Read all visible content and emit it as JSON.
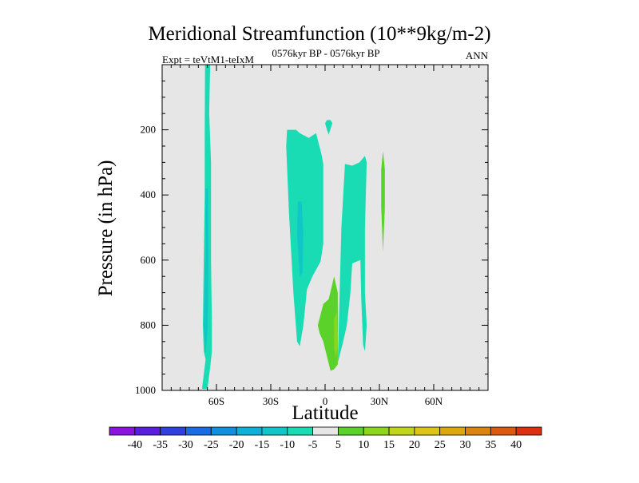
{
  "chart_data": {
    "type": "contour",
    "title": "Meridional Streamfunction (10**9kg/m-2)",
    "left_subtitle": "Expt = teVtM1-teIxM",
    "center_subtitle": "0576kyr BP - 0576kyr BP",
    "right_subtitle": "ANN",
    "xlabel": "Latitude",
    "ylabel": "Pressure (in hPa)",
    "xlim": [
      -90,
      90
    ],
    "ylim": [
      0,
      1000
    ],
    "x_ticks": [
      -60,
      -30,
      0,
      30,
      60
    ],
    "x_tick_labels": [
      "60S",
      "30S",
      "0",
      "30N",
      "60N"
    ],
    "y_ticks": [
      200,
      400,
      600,
      800,
      1000
    ],
    "y_tick_labels": [
      "200",
      "400",
      "600",
      "800",
      "1000"
    ],
    "background_color": "#e6e6e6",
    "colorbar": {
      "labels": [
        "-40",
        "-35",
        "-30",
        "-25",
        "-20",
        "-15",
        "-10",
        "-5",
        "5",
        "10",
        "15",
        "20",
        "25",
        "30",
        "35",
        "40"
      ],
      "colors": [
        "#8a13e0",
        "#5a1ee0",
        "#2f3fe0",
        "#1a6be6",
        "#1190e0",
        "#0cb0d8",
        "#10c6c8",
        "#19dcb4",
        "#e6e6e6",
        "#5ad22a",
        "#8cd61c",
        "#c0d61a",
        "#dcc514",
        "#dca80c",
        "#dc8410",
        "#dc5a10",
        "#dc3010"
      ]
    },
    "regions": [
      {
        "name": "sh-high-lat-cell",
        "fill": "#19dcb4",
        "points": [
          [
            -68,
            995
          ],
          [
            -66,
            905
          ],
          [
            -67,
            880
          ],
          [
            -67.5,
            800
          ],
          [
            -67,
            600
          ],
          [
            -66.5,
            400
          ],
          [
            -66.5,
            200
          ],
          [
            -66.3,
            0
          ],
          [
            -63.5,
            0
          ],
          [
            -64,
            150
          ],
          [
            -63,
            300
          ],
          [
            -63,
            600
          ],
          [
            -62.5,
            800
          ],
          [
            -62.5,
            880
          ],
          [
            -63.5,
            930
          ],
          [
            -65,
            995
          ]
        ]
      },
      {
        "name": "sh-high-lat-core",
        "fill": "#10c6c8",
        "points": [
          [
            -66,
            890
          ],
          [
            -67,
            800
          ],
          [
            -66,
            600
          ],
          [
            -66,
            380
          ],
          [
            -64.8,
            380
          ],
          [
            -64.5,
            600
          ],
          [
            -64.8,
            800
          ]
        ]
      },
      {
        "name": "tropical-left-cell",
        "fill": "#19dcb4",
        "points": [
          [
            -15.5,
            850
          ],
          [
            -17.5,
            700
          ],
          [
            -20,
            450
          ],
          [
            -21.5,
            250
          ],
          [
            -21,
            200
          ],
          [
            -16,
            200
          ],
          [
            -14,
            210
          ],
          [
            -9,
            225
          ],
          [
            -5,
            210
          ],
          [
            -2,
            275
          ],
          [
            -1,
            305
          ],
          [
            -1,
            550
          ],
          [
            -2.5,
            605
          ],
          [
            -7,
            650
          ],
          [
            -10,
            690
          ],
          [
            -12,
            800
          ],
          [
            -14,
            865
          ]
        ]
      },
      {
        "name": "tropical-left-core",
        "fill": "#10c6c8",
        "points": [
          [
            -14,
            650
          ],
          [
            -15.5,
            520
          ],
          [
            -15,
            420
          ],
          [
            -13,
            420
          ],
          [
            -12,
            520
          ],
          [
            -12.5,
            640
          ]
        ]
      },
      {
        "name": "upper-patch",
        "fill": "#19dcb4",
        "points": [
          [
            0,
            180
          ],
          [
            1,
            200
          ],
          [
            2,
            215
          ],
          [
            4,
            180
          ],
          [
            3,
            170
          ],
          [
            1,
            170
          ]
        ]
      },
      {
        "name": "tropical-mid-cell",
        "fill": "#19dcb4",
        "points": [
          [
            7,
            915
          ],
          [
            9,
            500
          ],
          [
            11,
            305
          ],
          [
            15,
            310
          ],
          [
            19,
            300
          ],
          [
            22,
            280
          ],
          [
            23,
            300
          ],
          [
            22,
            500
          ],
          [
            22,
            700
          ],
          [
            23,
            800
          ],
          [
            22,
            880
          ],
          [
            21,
            860
          ],
          [
            20,
            720
          ],
          [
            19.5,
            600
          ],
          [
            15,
            610
          ],
          [
            14,
            700
          ],
          [
            12,
            800
          ],
          [
            10,
            850
          ]
        ]
      },
      {
        "name": "nh-positive-small",
        "fill": "#5ad22a",
        "points": [
          [
            32,
            265
          ],
          [
            31,
            320
          ],
          [
            31,
            440
          ],
          [
            32,
            575
          ],
          [
            33,
            440
          ],
          [
            33,
            320
          ]
        ]
      },
      {
        "name": "equatorial-positive",
        "fill": "#5ad22a",
        "points": [
          [
            -4,
            800
          ],
          [
            -1,
            735
          ],
          [
            2,
            720
          ],
          [
            5,
            650
          ],
          [
            7,
            700
          ],
          [
            7,
            920
          ],
          [
            5,
            935
          ],
          [
            3,
            940
          ],
          [
            -1,
            850
          ],
          [
            -3,
            825
          ]
        ]
      },
      {
        "name": "equatorial-positive-core",
        "fill": "#8cd61c",
        "points": [
          [
            5,
            780
          ],
          [
            6.5,
            760
          ],
          [
            7,
            860
          ],
          [
            6,
            900
          ],
          [
            5,
            870
          ]
        ]
      }
    ]
  }
}
